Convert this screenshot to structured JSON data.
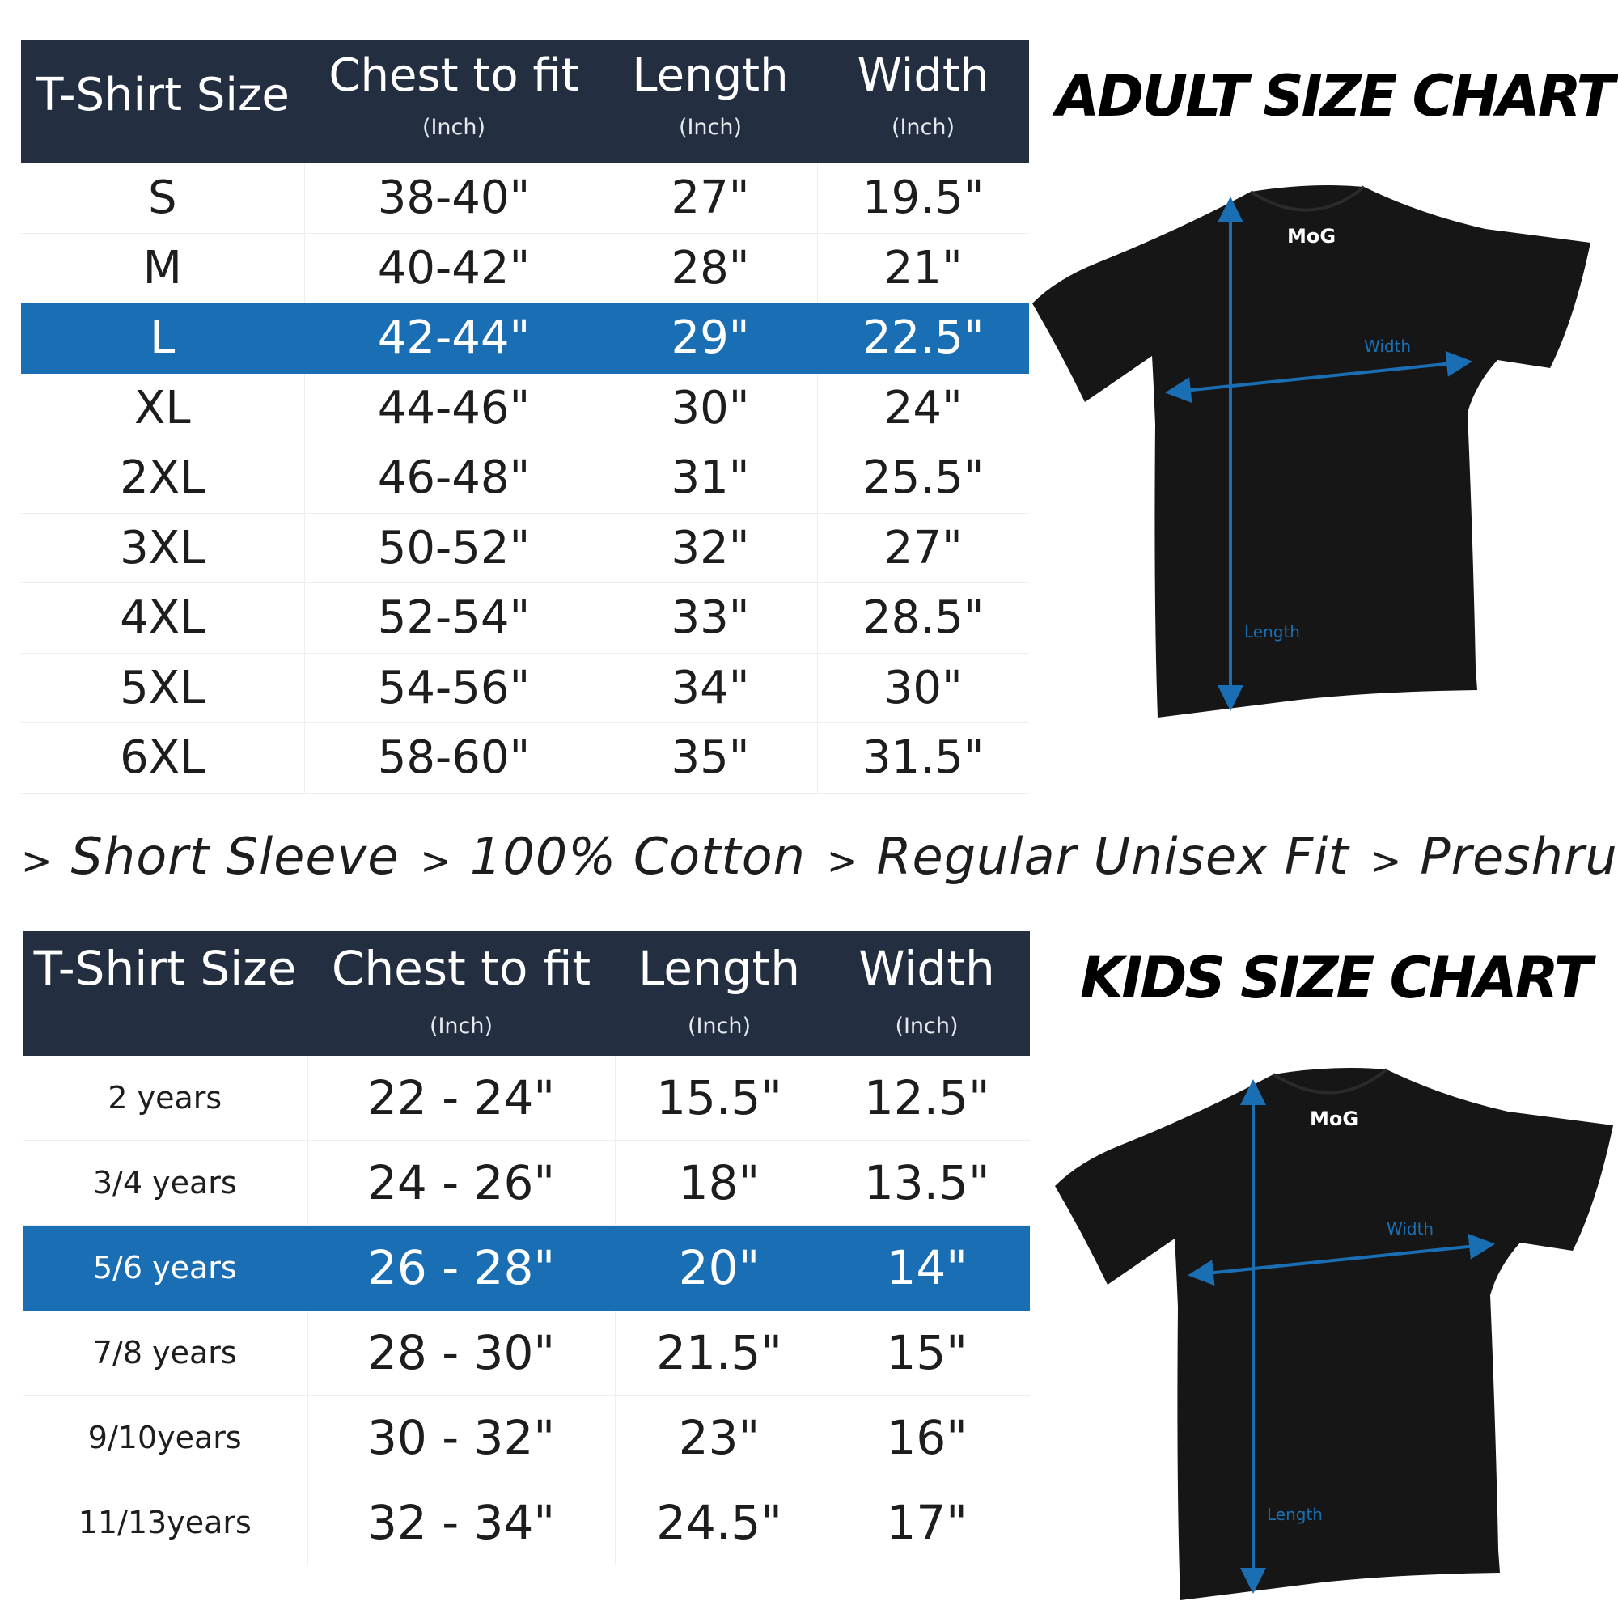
{
  "colors": {
    "header": "#232f40",
    "highlight": "#1a6fb4",
    "arrow": "#1a6fb4",
    "shirt": "#161616"
  },
  "adult": {
    "title": "ADULT SIZE CHART",
    "headers": [
      {
        "label": "T-Shirt Size",
        "unit": ""
      },
      {
        "label": "Chest to fit",
        "unit": "(Inch)"
      },
      {
        "label": "Length",
        "unit": "(Inch)"
      },
      {
        "label": "Width",
        "unit": "(Inch)"
      }
    ],
    "highlighted_row": 2,
    "rows": [
      [
        "S",
        "38-40\"",
        "27\"",
        "19.5\""
      ],
      [
        "M",
        "40-42\"",
        "28\"",
        "21\""
      ],
      [
        "L",
        "42-44\"",
        "29\"",
        "22.5\""
      ],
      [
        "XL",
        "44-46\"",
        "30\"",
        "24\""
      ],
      [
        "2XL",
        "46-48\"",
        "31\"",
        "25.5\""
      ],
      [
        "3XL",
        "50-52\"",
        "32\"",
        "27\""
      ],
      [
        "4XL",
        "52-54\"",
        "33\"",
        "28.5\""
      ],
      [
        "5XL",
        "54-56\"",
        "34\"",
        "30\""
      ],
      [
        "6XL",
        "58-60\"",
        "35\"",
        "31.5\""
      ]
    ],
    "shirt": {
      "logo": "MoG",
      "width_label": "Width",
      "length_label": "Length"
    }
  },
  "features": {
    "separator": ">",
    "items": [
      "Short Sleeve",
      "100% Cotton",
      "Regular Unisex Fit",
      "Preshrunk"
    ]
  },
  "kids": {
    "title": "KIDS SIZE CHART",
    "headers": [
      {
        "label": "T-Shirt Size",
        "unit": ""
      },
      {
        "label": "Chest to fit",
        "unit": "(Inch)"
      },
      {
        "label": "Length",
        "unit": "(Inch)"
      },
      {
        "label": "Width",
        "unit": "(Inch)"
      }
    ],
    "highlighted_row": 2,
    "rows": [
      [
        "2 years",
        "22 - 24\"",
        "15.5\"",
        "12.5\""
      ],
      [
        "3/4 years",
        "24 - 26\"",
        "18\"",
        "13.5\""
      ],
      [
        "5/6 years",
        "26 - 28\"",
        "20\"",
        "14\""
      ],
      [
        "7/8 years",
        "28 - 30\"",
        "21.5\"",
        "15\""
      ],
      [
        "9/10years",
        "30 - 32\"",
        "23\"",
        "16\""
      ],
      [
        "11/13years",
        "32 - 34\"",
        "24.5\"",
        "17\""
      ]
    ],
    "shirt": {
      "logo": "MoG",
      "width_label": "Width",
      "length_label": "Length"
    }
  }
}
